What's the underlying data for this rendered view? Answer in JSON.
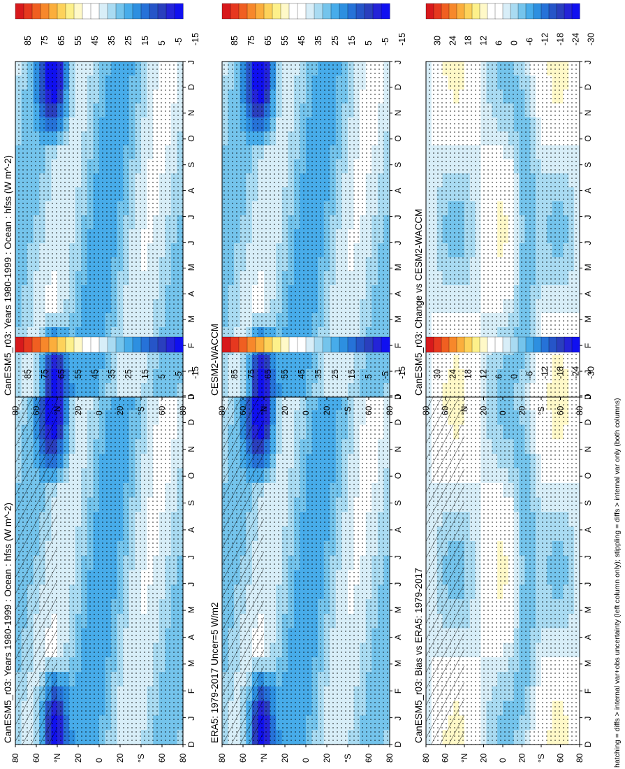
{
  "figure": {
    "footnote": "hatching = diffs > internal var+obs uncertainty (left column only); stippling = diffs > internal var only (both columns)"
  },
  "colorbars": {
    "absolute": [
      "85",
      "75",
      "65",
      "55",
      "45",
      "35",
      "25",
      "15",
      "5",
      "-5",
      "-15"
    ],
    "difference": [
      "30",
      "24",
      "18",
      "12",
      "6",
      "0",
      "-6",
      "-12",
      "-18",
      "-24",
      "-30"
    ],
    "colors_absolute": [
      "#d7191c",
      "#e6381f",
      "#f05f21",
      "#f7882b",
      "#fbae3c",
      "#fdd25a",
      "#fdf08a",
      "#fff9c8",
      "#ffffff",
      "#ffffff",
      "#d8eef8",
      "#a9dbf2",
      "#74c4ec",
      "#47acea",
      "#2d8fe0",
      "#2672d8",
      "#2655c8",
      "#2a3fbe",
      "#2424d8",
      "#1010f0"
    ],
    "colors_difference": [
      "#d7191c",
      "#e6381f",
      "#f05f21",
      "#f7882b",
      "#fbae3c",
      "#fdd25a",
      "#fdf08a",
      "#fff9c8",
      "#ffffff",
      "#ffffff",
      "#d8eef8",
      "#a9dbf2",
      "#74c4ec",
      "#47acea",
      "#2d8fe0",
      "#2672d8",
      "#2655c8",
      "#2a3fbe",
      "#2424d8",
      "#1010f0"
    ]
  },
  "axes": {
    "months": [
      "D",
      "J",
      "F",
      "M",
      "A",
      "M",
      "J",
      "J",
      "A",
      "S",
      "O",
      "N",
      "D",
      "J"
    ],
    "latitudes": [
      "80",
      "60",
      "°N",
      "20",
      "0",
      "20",
      "°S",
      "60",
      "80"
    ]
  },
  "chart_data": [
    {
      "type": "heatmap",
      "panel": "left-top",
      "title": "CanESM5_r03: Years 1980-1999 : Ocean : hfss (W m^-2)",
      "x": "month",
      "y": "latitude",
      "colorbar": "absolute",
      "hatching": true,
      "stippling": true
    },
    {
      "type": "heatmap",
      "panel": "left-middle",
      "title": "ERA5: 1979-2017 Uncer=5 W/m2",
      "x": "month",
      "y": "latitude",
      "colorbar": "absolute",
      "hatching": true,
      "stippling": true
    },
    {
      "type": "heatmap",
      "panel": "left-bottom",
      "title": "CanESM5_r03: Bias vs ERA5: 1979-2017",
      "x": "month",
      "y": "latitude",
      "colorbar": "difference",
      "hatching": true,
      "stippling": true
    },
    {
      "type": "heatmap",
      "panel": "right-top",
      "title": "CanESM5_r03: Years 1980-1999 : Ocean : hfss (W m^-2)",
      "x": "month",
      "y": "latitude",
      "colorbar": "absolute",
      "hatching": false,
      "stippling": true
    },
    {
      "type": "heatmap",
      "panel": "right-middle",
      "title": "CESM2-WACCM",
      "x": "month",
      "y": "latitude",
      "colorbar": "absolute",
      "hatching": false,
      "stippling": true
    },
    {
      "type": "heatmap",
      "panel": "right-bottom",
      "title": "CanESM5_r03: Change vs CESM2-WACCM",
      "x": "month",
      "y": "latitude",
      "colorbar": "difference",
      "hatching": false,
      "stippling": true
    }
  ]
}
